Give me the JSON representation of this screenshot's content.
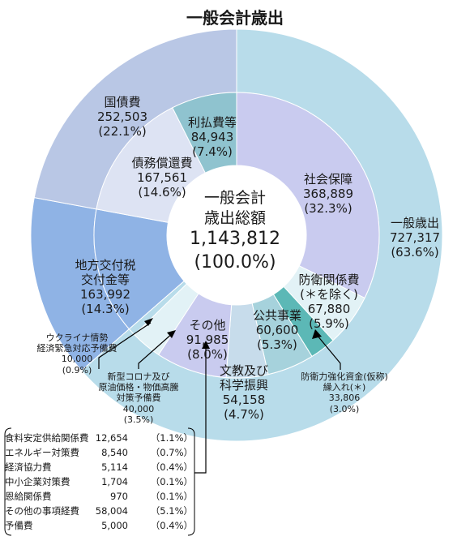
{
  "title": "一般会計歳出",
  "center": {
    "line1": "一般会計",
    "line2": "歳出総額",
    "value": "1,143,812",
    "percent": "(100.0%)"
  },
  "chart_data": {
    "type": "pie",
    "title": "一般会計歳出",
    "total": 1143812,
    "outer": [
      {
        "name": "一般歳出",
        "value": 727317,
        "value_label": "727,317",
        "percent_label": "(63.6%)",
        "color": "#b8dcea"
      },
      {
        "name": "地方交付税交付金等",
        "value": 163992,
        "value_label": "163,992",
        "percent_label": "(14.3%)",
        "color": "#8fb3e5"
      },
      {
        "name": "国債費",
        "value": 252503,
        "value_label": "252,503",
        "percent_label": "(22.1%)",
        "color": "#b9c7e5"
      }
    ],
    "inner": [
      {
        "name": "社会保障",
        "value": 368889,
        "value_label": "368,889",
        "percent_label": "(32.3%)",
        "color": "#c9cbef"
      },
      {
        "name": "防衛関係費（＊を除く）",
        "value": 67880,
        "value_label": "67,880",
        "percent_label": "(5.9%)",
        "color": "#e2f2f6"
      },
      {
        "name": "防衛力強化資金(仮称)繰入れ(＊)",
        "value": 33806,
        "value_label": "33,806",
        "percent_label": "(3.0%)",
        "color": "#5cb8b6"
      },
      {
        "name": "公共事業",
        "value": 60600,
        "value_label": "60,600",
        "percent_label": "(5.3%)",
        "color": "#a6d2dc"
      },
      {
        "name": "文教及び科学振興",
        "value": 54158,
        "value_label": "54,158",
        "percent_label": "(4.7%)",
        "color": "#c7dceb"
      },
      {
        "name": "その他",
        "value": 91985,
        "value_label": "91,985",
        "percent_label": "(8.0%)",
        "color": "#c9cbef"
      },
      {
        "name": "新型コロナ及び原油価格・物価高騰対策予備費",
        "value": 40000,
        "value_label": "40,000",
        "percent_label": "(3.5%)",
        "color": "#e2f2f6"
      },
      {
        "name": "ウクライナ情勢経済緊急対応予備費",
        "value": 10000,
        "value_label": "10,000",
        "percent_label": "(0.9%)",
        "color": "#b8dcea"
      },
      {
        "name": "地方交付税交付金等",
        "value": 163992,
        "value_label": "163,992",
        "percent_label": "(14.3%)",
        "color": "#8fb3e5"
      },
      {
        "name": "債務償還費",
        "value": 167561,
        "value_label": "167,561",
        "percent_label": "(14.6%)",
        "color": "#dde3f3"
      },
      {
        "name": "利払費等",
        "value": 84943,
        "value_label": "84,943",
        "percent_label": "(7.4%)",
        "color": "#8fc3cf"
      }
    ],
    "breakdown": [
      {
        "name": "食料安定供給関係費",
        "value": 12654,
        "value_label": "12,654",
        "percent_label": "（1.1%）"
      },
      {
        "name": "エネルギー対策費",
        "value": 8540,
        "value_label": "8,540",
        "percent_label": "（0.7%）"
      },
      {
        "name": "経済協力費",
        "value": 5114,
        "value_label": "5,114",
        "percent_label": "（0.4%）"
      },
      {
        "name": "中小企業対策費",
        "value": 1704,
        "value_label": "1,704",
        "percent_label": "（0.1%）"
      },
      {
        "name": "恩給関係費",
        "value": 970,
        "value_label": "970",
        "percent_label": "（0.1%）"
      },
      {
        "name": "その他の事項経費",
        "value": 58004,
        "value_label": "58,004",
        "percent_label": "（5.1%）"
      },
      {
        "name": "予備費",
        "value": 5000,
        "value_label": "5,000",
        "percent_label": "（0.4%）"
      }
    ]
  },
  "labels": {
    "ippan_saishutsu": {
      "l1": "一般歳出",
      "l2": "727,317",
      "l3": "(63.6%)"
    },
    "kokusaihi": {
      "l1": "国債費",
      "l2": "252,503",
      "l3": "(22.1%)"
    },
    "chiho": {
      "l1": "地方交付税",
      "l2": "交付金等",
      "l3": "163,992",
      "l4": "(14.3%)"
    },
    "shakai": {
      "l1": "社会保障",
      "l2": "368,889",
      "l3": "(32.3%)"
    },
    "boei": {
      "l1": "防衛関係費",
      "l2": "(＊を除く)",
      "l3": "67,880",
      "l4": "(5.9%)"
    },
    "boei_kikin": {
      "l1": "防衛力強化資金(仮称)",
      "l2": "繰入れ(＊)",
      "l3": "33,806",
      "l4": "(3.0%)"
    },
    "kokyo": {
      "l1": "公共事業",
      "l2": "60,600",
      "l3": "(5.3%)"
    },
    "bunkyo": {
      "l1": "文教及び",
      "l2": "科学振興",
      "l3": "54,158",
      "l4": "(4.7%)"
    },
    "sonota": {
      "l1": "その他",
      "l2": "91,985",
      "l3": "(8.0%)"
    },
    "corona": {
      "l1": "新型コロナ及び",
      "l2": "原油価格・物価高騰",
      "l3": "対策予備費",
      "l4": "40,000",
      "l5": "(3.5%)"
    },
    "ukraine": {
      "l1": "ウクライナ情勢",
      "l2": "経済緊急対応予備費",
      "l3": "10,000",
      "l4": "(0.9%)"
    },
    "saimu": {
      "l1": "債務償還費",
      "l2": "167,561",
      "l3": "(14.6%)"
    },
    "haraihi": {
      "l1": "利払費等",
      "l2": "84,943",
      "l3": "(7.4%)"
    }
  }
}
